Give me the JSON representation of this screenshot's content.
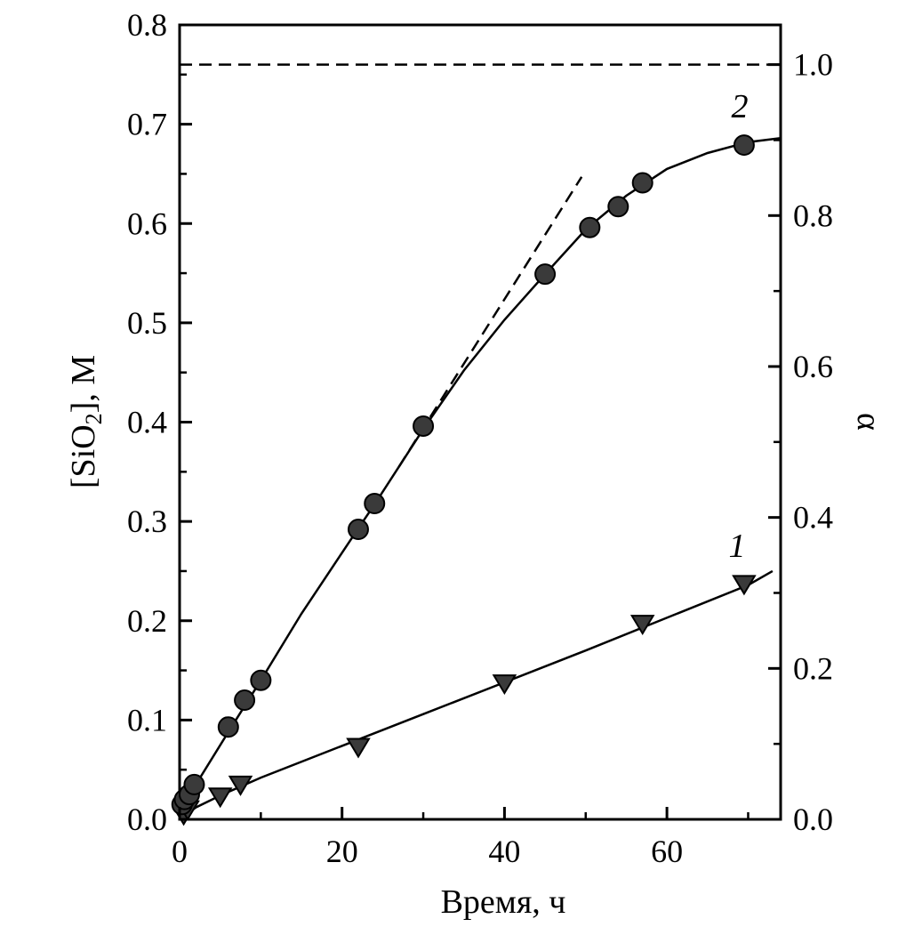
{
  "chart_data": {
    "type": "scatter",
    "xlabel": "Время, ч",
    "ylabel": "[SiO2], M",
    "ylabel_parts": {
      "pre": "[SiO",
      "sub": "2",
      "post": "], M"
    },
    "y2label": "α",
    "xlim": [
      0,
      74
    ],
    "ylim": [
      0,
      0.8
    ],
    "y2lim": [
      0,
      1.0526
    ],
    "x_ticks": [
      "0",
      "20",
      "40",
      "60"
    ],
    "x_tick_values": [
      0,
      20,
      40,
      60
    ],
    "y_ticks": [
      "0.0",
      "0.1",
      "0.2",
      "0.3",
      "0.4",
      "0.5",
      "0.6",
      "0.7",
      "0.8"
    ],
    "y_tick_values": [
      0,
      0.1,
      0.2,
      0.3,
      0.4,
      0.5,
      0.6,
      0.7,
      0.8
    ],
    "y2_ticks": [
      "0.0",
      "0.2",
      "0.4",
      "0.6",
      "0.8",
      "1.0"
    ],
    "y2_tick_values": [
      0,
      0.2,
      0.4,
      0.6,
      0.8,
      1.0
    ],
    "reference_line_alpha": 1.0,
    "grid": false,
    "series": [
      {
        "name": "1",
        "marker": "triangle-down",
        "x": [
          0.5,
          1.0,
          5.0,
          7.5,
          22,
          40,
          57,
          69.5
        ],
        "y": [
          0.005,
          0.01,
          0.023,
          0.035,
          0.073,
          0.137,
          0.197,
          0.237
        ],
        "fit_x": [
          0,
          2,
          5,
          10,
          20,
          30,
          40,
          50,
          60,
          70,
          73
        ],
        "fit_y": [
          0.0,
          0.012,
          0.024,
          0.042,
          0.074,
          0.106,
          0.138,
          0.17,
          0.203,
          0.236,
          0.25
        ]
      },
      {
        "name": "2",
        "marker": "circle",
        "x": [
          0.3,
          0.6,
          1.2,
          1.8,
          6,
          8,
          10,
          22,
          24,
          30,
          45,
          50.5,
          54,
          57,
          69.5
        ],
        "y": [
          0.015,
          0.02,
          0.025,
          0.035,
          0.093,
          0.12,
          0.14,
          0.292,
          0.318,
          0.396,
          0.549,
          0.596,
          0.617,
          0.641,
          0.679
        ],
        "fit_x": [
          0,
          2,
          6,
          8,
          10,
          15,
          22,
          24,
          30,
          35,
          40,
          45,
          50,
          55,
          60,
          65,
          70,
          74
        ],
        "fit_y": [
          0.0,
          0.035,
          0.088,
          0.114,
          0.14,
          0.207,
          0.293,
          0.317,
          0.393,
          0.452,
          0.503,
          0.549,
          0.594,
          0.628,
          0.655,
          0.671,
          0.682,
          0.686
        ],
        "tangent_x": [
          27,
          49.5
        ],
        "tangent_y": [
          0.355,
          0.647
        ]
      }
    ]
  }
}
